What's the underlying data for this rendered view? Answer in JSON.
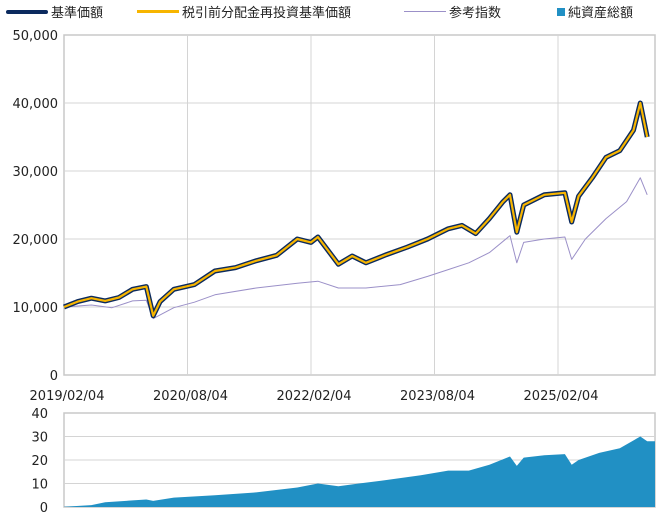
{
  "legend": [
    {
      "label": "基準価額",
      "color": "#0b2a5e",
      "kind": "line"
    },
    {
      "label": "税引前分配金再投資基準価額",
      "color": "#f7b500",
      "kind": "line"
    },
    {
      "label": "参考指数",
      "color": "#9b90c8",
      "kind": "line"
    },
    {
      "label": "純資産総額",
      "color": "#2190c4",
      "kind": "square"
    }
  ],
  "chart_data": [
    {
      "type": "line",
      "x_tick_labels": [
        "2019/02/04",
        "2020/08/04",
        "2022/02/04",
        "2023/08/04",
        "2025/02/04"
      ],
      "y_tick_labels": [
        "0",
        "10,000",
        "20,000",
        "30,000",
        "40,000",
        "50,000"
      ],
      "ylim": [
        0,
        50000
      ],
      "grid": true,
      "legend_position": "top",
      "series": [
        {
          "name": "基準価額",
          "color": "#0b2a5e",
          "points": [
            [
              "2019-02",
              10000
            ],
            [
              "2019-04",
              10800
            ],
            [
              "2019-06",
              11300
            ],
            [
              "2019-08",
              10900
            ],
            [
              "2019-10",
              11400
            ],
            [
              "2019-12",
              12600
            ],
            [
              "2020-02",
              13000
            ],
            [
              "2020-03",
              8700
            ],
            [
              "2020-04",
              10800
            ],
            [
              "2020-06",
              12600
            ],
            [
              "2020-09",
              13300
            ],
            [
              "2020-12",
              15300
            ],
            [
              "2021-03",
              15800
            ],
            [
              "2021-06",
              16800
            ],
            [
              "2021-09",
              17600
            ],
            [
              "2021-12",
              20000
            ],
            [
              "2022-02",
              19500
            ],
            [
              "2022-03",
              20300
            ],
            [
              "2022-06",
              16300
            ],
            [
              "2022-08",
              17500
            ],
            [
              "2022-10",
              16500
            ],
            [
              "2023-01",
              17700
            ],
            [
              "2023-04",
              18800
            ],
            [
              "2023-07",
              20000
            ],
            [
              "2023-10",
              21500
            ],
            [
              "2023-12",
              22000
            ],
            [
              "2024-02",
              20800
            ],
            [
              "2024-04",
              23000
            ],
            [
              "2024-06",
              25500
            ],
            [
              "2024-07",
              26500
            ],
            [
              "2024-08",
              21000
            ],
            [
              "2024-09",
              25000
            ],
            [
              "2024-12",
              26500
            ],
            [
              "2025-03",
              26800
            ],
            [
              "2025-04",
              22500
            ],
            [
              "2025-05",
              26300
            ],
            [
              "2025-07",
              29000
            ],
            [
              "2025-09",
              32000
            ],
            [
              "2025-11",
              33000
            ],
            [
              "2026-01",
              36000
            ],
            [
              "2026-02",
              40000
            ],
            [
              "2026-03",
              35000
            ]
          ]
        },
        {
          "name": "税引前分配金再投資基準価額",
          "color": "#f7b500",
          "points": [
            [
              "2019-02",
              10000
            ],
            [
              "2019-04",
              10800
            ],
            [
              "2019-06",
              11300
            ],
            [
              "2019-08",
              10900
            ],
            [
              "2019-10",
              11400
            ],
            [
              "2019-12",
              12600
            ],
            [
              "2020-02",
              13000
            ],
            [
              "2020-03",
              8700
            ],
            [
              "2020-04",
              10800
            ],
            [
              "2020-06",
              12600
            ],
            [
              "2020-09",
              13300
            ],
            [
              "2020-12",
              15300
            ],
            [
              "2021-03",
              15800
            ],
            [
              "2021-06",
              16800
            ],
            [
              "2021-09",
              17600
            ],
            [
              "2021-12",
              20000
            ],
            [
              "2022-02",
              19500
            ],
            [
              "2022-03",
              20300
            ],
            [
              "2022-06",
              16300
            ],
            [
              "2022-08",
              17500
            ],
            [
              "2022-10",
              16500
            ],
            [
              "2023-01",
              17700
            ],
            [
              "2023-04",
              18800
            ],
            [
              "2023-07",
              20000
            ],
            [
              "2023-10",
              21500
            ],
            [
              "2023-12",
              22000
            ],
            [
              "2024-02",
              20800
            ],
            [
              "2024-04",
              23000
            ],
            [
              "2024-06",
              25500
            ],
            [
              "2024-07",
              26500
            ],
            [
              "2024-08",
              21000
            ],
            [
              "2024-09",
              25000
            ],
            [
              "2024-12",
              26500
            ],
            [
              "2025-03",
              26800
            ],
            [
              "2025-04",
              22500
            ],
            [
              "2025-05",
              26300
            ],
            [
              "2025-07",
              29000
            ],
            [
              "2025-09",
              32000
            ],
            [
              "2025-11",
              33000
            ],
            [
              "2026-01",
              36000
            ],
            [
              "2026-02",
              40000
            ],
            [
              "2026-03",
              35000
            ]
          ]
        },
        {
          "name": "参考指数",
          "color": "#9b90c8",
          "points": [
            [
              "2019-02",
              10000
            ],
            [
              "2019-06",
              10300
            ],
            [
              "2019-09",
              9900
            ],
            [
              "2019-12",
              10900
            ],
            [
              "2020-02",
              11000
            ],
            [
              "2020-03",
              8300
            ],
            [
              "2020-06",
              9900
            ],
            [
              "2020-09",
              10700
            ],
            [
              "2020-12",
              11800
            ],
            [
              "2021-06",
              12800
            ],
            [
              "2021-12",
              13500
            ],
            [
              "2022-03",
              13800
            ],
            [
              "2022-06",
              12800
            ],
            [
              "2022-10",
              12800
            ],
            [
              "2023-03",
              13300
            ],
            [
              "2023-07",
              14500
            ],
            [
              "2023-10",
              15500
            ],
            [
              "2024-01",
              16500
            ],
            [
              "2024-04",
              18000
            ],
            [
              "2024-07",
              20500
            ],
            [
              "2024-08",
              16500
            ],
            [
              "2024-09",
              19500
            ],
            [
              "2024-12",
              20000
            ],
            [
              "2025-03",
              20300
            ],
            [
              "2025-04",
              17000
            ],
            [
              "2025-06",
              20000
            ],
            [
              "2025-09",
              23000
            ],
            [
              "2025-12",
              25500
            ],
            [
              "2026-02",
              29000
            ],
            [
              "2026-03",
              26500
            ]
          ]
        }
      ]
    },
    {
      "type": "area",
      "y_tick_labels": [
        "0",
        "10",
        "20",
        "30",
        "40"
      ],
      "ylim": [
        0,
        40
      ],
      "grid": true,
      "series": [
        {
          "name": "純資産総額",
          "color": "#2190c4",
          "points": [
            [
              "2019-02",
              0.1
            ],
            [
              "2019-06",
              0.8
            ],
            [
              "2019-08",
              2.0
            ],
            [
              "2019-12",
              2.8
            ],
            [
              "2020-02",
              3.2
            ],
            [
              "2020-03",
              2.6
            ],
            [
              "2020-06",
              4.0
            ],
            [
              "2020-12",
              5.0
            ],
            [
              "2021-06",
              6.2
            ],
            [
              "2021-12",
              8.3
            ],
            [
              "2022-03",
              10.0
            ],
            [
              "2022-06",
              8.8
            ],
            [
              "2022-09",
              10.0
            ],
            [
              "2023-01",
              11.5
            ],
            [
              "2023-06",
              13.5
            ],
            [
              "2023-10",
              15.5
            ],
            [
              "2024-01",
              15.5
            ],
            [
              "2024-04",
              18.0
            ],
            [
              "2024-07",
              21.5
            ],
            [
              "2024-08",
              17.5
            ],
            [
              "2024-09",
              21.0
            ],
            [
              "2024-12",
              22.0
            ],
            [
              "2025-03",
              22.5
            ],
            [
              "2025-04",
              18.0
            ],
            [
              "2025-05",
              20.0
            ],
            [
              "2025-08",
              23.0
            ],
            [
              "2025-11",
              25.0
            ],
            [
              "2026-02",
              30.0
            ],
            [
              "2026-03",
              28.0
            ]
          ]
        }
      ]
    }
  ]
}
